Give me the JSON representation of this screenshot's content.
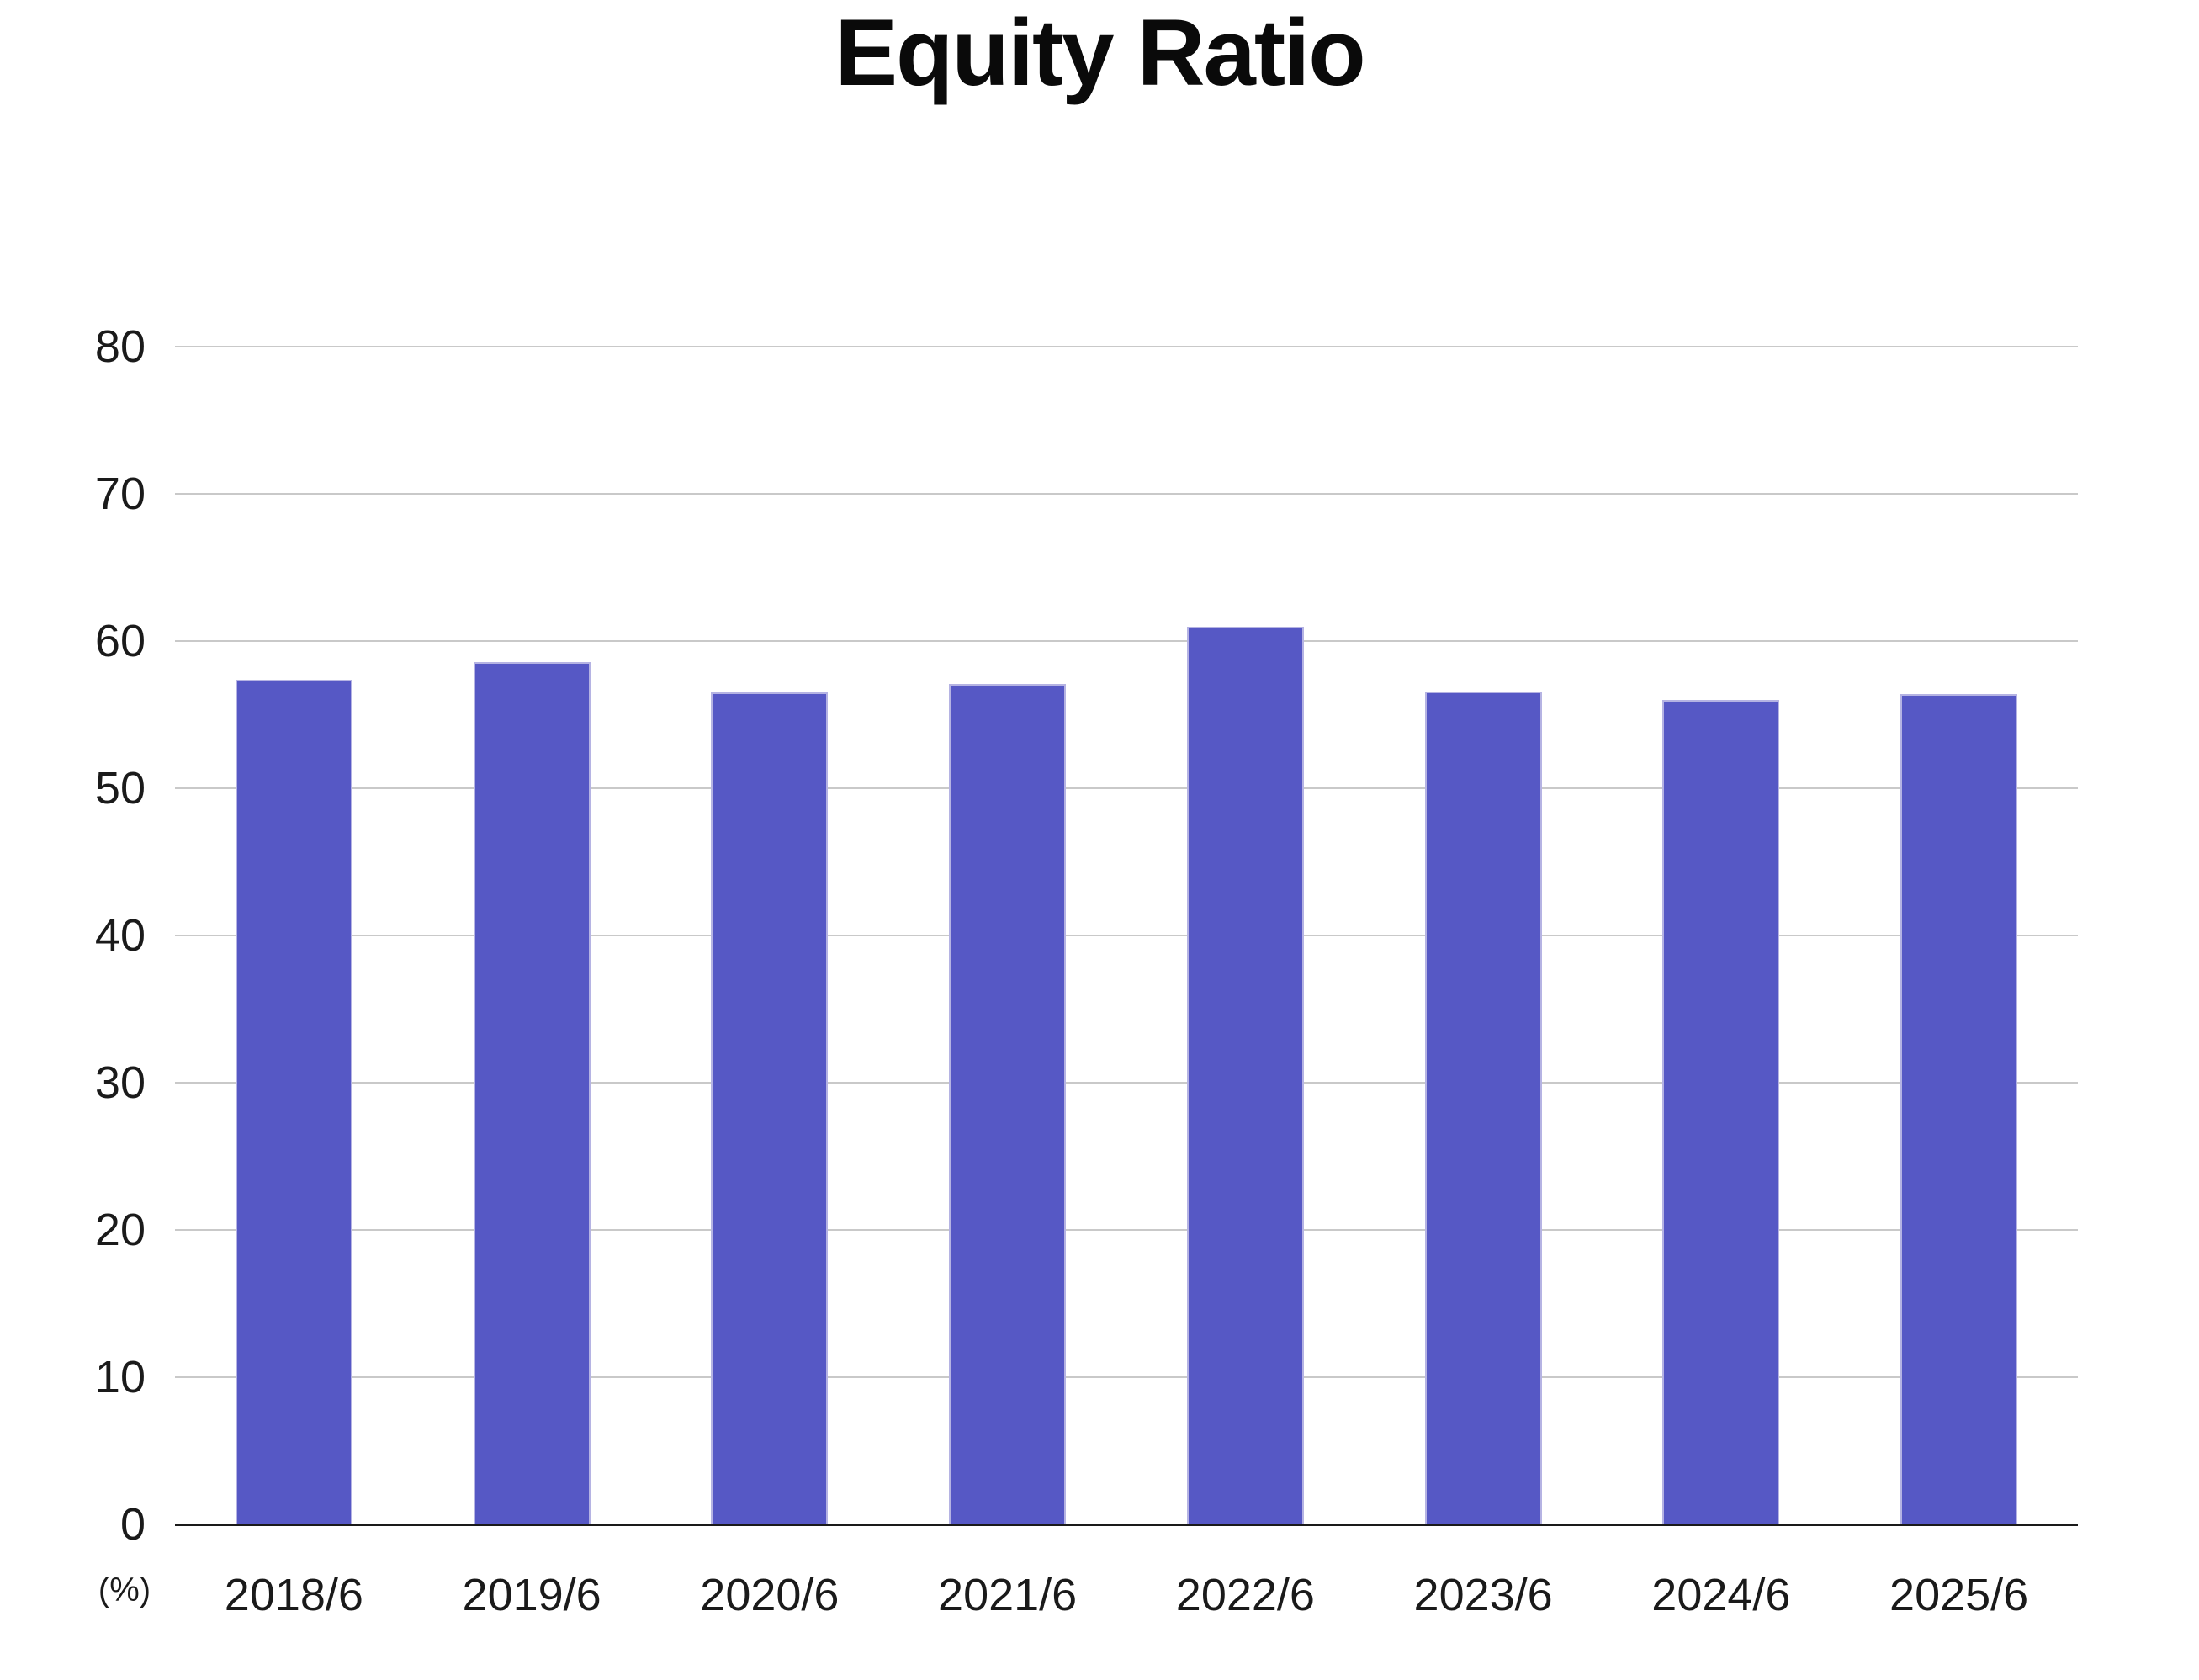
{
  "chart_data": {
    "type": "bar",
    "title": "Equity Ratio",
    "unit_label": "(%)",
    "categories": [
      "2018/6",
      "2019/6",
      "2020/6",
      "2021/6",
      "2022/6",
      "2023/6",
      "2024/6",
      "2025/6"
    ],
    "values": [
      57.4,
      58.6,
      56.5,
      57.1,
      61.0,
      56.6,
      56.0,
      56.4
    ],
    "ylim": [
      0,
      80
    ],
    "yticks": [
      0,
      10,
      20,
      30,
      40,
      50,
      60,
      70,
      80
    ],
    "grid": "horizontal-only",
    "legend": "none",
    "colors": {
      "bar_fill": "#5658c5",
      "bar_edge": "#b5b3e3",
      "gridline": "#c9c9c9",
      "axis": "#1a1a1a",
      "text": "#1a1a1a",
      "title_text": "#0a0a0a",
      "background": "#ffffff"
    }
  }
}
